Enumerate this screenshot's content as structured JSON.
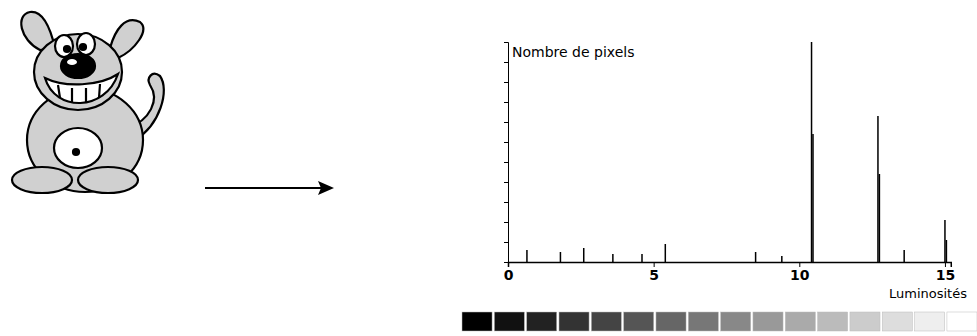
{
  "chart_data": {
    "type": "bar",
    "x_label": "Luminosités",
    "y_label": "Nombre de pixels",
    "x": [
      0.65,
      1.8,
      2.6,
      3.6,
      4.6,
      5.4,
      8.5,
      9.4,
      10.42,
      10.47,
      12.7,
      12.75,
      13.6,
      15.0,
      15.05
    ],
    "values": [
      0.6,
      0.5,
      0.7,
      0.4,
      0.4,
      0.9,
      0.5,
      0.3,
      11,
      6.4,
      7.3,
      4.4,
      0.6,
      2.1,
      1.1
    ],
    "color": "#000000",
    "xlim": [
      0,
      15.2
    ],
    "xticks": [
      0,
      5,
      10,
      15
    ],
    "ylim": [
      0,
      11
    ],
    "yticks": [
      0,
      1,
      2,
      3,
      4,
      5,
      6,
      7,
      8,
      9,
      10,
      11
    ],
    "tick_labels": "x",
    "grid": false,
    "scale_levels": [
      0,
      1,
      2,
      3,
      4,
      5,
      6,
      7,
      8,
      9,
      10,
      11,
      12,
      13,
      14,
      15
    ]
  }
}
